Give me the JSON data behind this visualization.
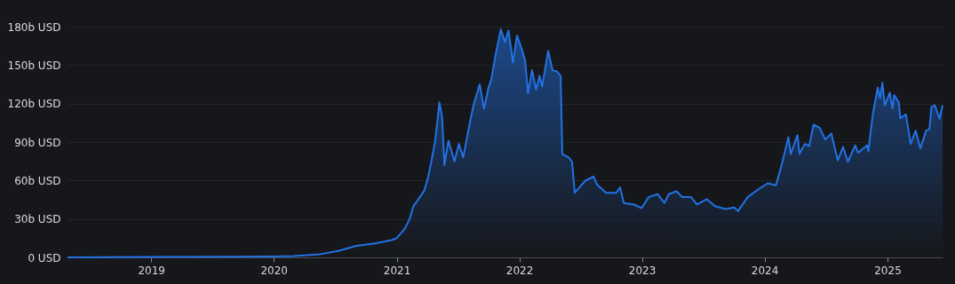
{
  "chart_data": {
    "type": "area",
    "x": [
      "2018-04-27",
      "2019-01-01",
      "2020-01-01",
      "2020-03-01",
      "2020-05-19",
      "2020-07-11",
      "2020-09-03",
      "2020-10-25",
      "2020-12-17",
      "2021-01-01",
      "2021-01-24",
      "2021-02-07",
      "2021-02-20",
      "2021-03-03",
      "2021-03-24",
      "2021-04-04",
      "2021-04-15",
      "2021-04-25",
      "2021-05-05",
      "2021-05-08",
      "2021-05-16",
      "2021-05-23",
      "2021-06-04",
      "2021-06-22",
      "2021-07-05",
      "2021-07-18",
      "2021-08-09",
      "2021-08-18",
      "2021-09-05",
      "2021-09-18",
      "2021-10-01",
      "2021-10-10",
      "2021-10-23",
      "2021-11-07",
      "2021-11-19",
      "2021-11-30",
      "2021-12-13",
      "2021-12-25",
      "2022-01-07",
      "2022-01-18",
      "2022-01-27",
      "2022-02-08",
      "2022-02-20",
      "2022-03-02",
      "2022-03-10",
      "2022-03-28",
      "2022-04-10",
      "2022-04-23",
      "2022-05-04",
      "2022-05-09",
      "2022-05-28",
      "2022-06-07",
      "2022-06-15",
      "2022-07-16",
      "2022-08-10",
      "2022-08-20",
      "2022-09-16",
      "2022-10-17",
      "2022-10-28",
      "2022-11-08",
      "2022-12-09",
      "2022-12-31",
      "2023-01-21",
      "2023-02-17",
      "2023-03-09",
      "2023-03-22",
      "2023-04-14",
      "2023-05-01",
      "2023-05-27",
      "2023-06-14",
      "2023-07-13",
      "2023-08-06",
      "2023-09-07",
      "2023-10-03",
      "2023-10-14",
      "2023-11-12",
      "2023-12-12",
      "2024-01-11",
      "2024-02-04",
      "2024-02-20",
      "2024-03-02",
      "2024-03-12",
      "2024-03-19",
      "2024-04-08",
      "2024-04-14",
      "2024-04-30",
      "2024-05-13",
      "2024-05-26",
      "2024-06-13",
      "2024-06-30",
      "2024-07-18",
      "2024-08-06",
      "2024-08-22",
      "2024-09-05",
      "2024-09-27",
      "2024-10-06",
      "2024-11-01",
      "2024-11-05",
      "2024-11-19",
      "2024-12-03",
      "2024-12-10",
      "2024-12-17",
      "2024-12-24",
      "2025-01-08",
      "2025-01-16",
      "2025-01-21",
      "2025-02-04",
      "2025-02-08",
      "2025-02-25",
      "2025-03-11",
      "2025-03-26",
      "2025-04-09",
      "2025-04-26",
      "2025-05-06",
      "2025-05-12",
      "2025-05-22",
      "2025-06-05",
      "2025-06-14"
    ],
    "series": [
      {
        "color": "#2172e5",
        "values": [
          0,
          0.3,
          0.7,
          1,
          2.5,
          5,
          9,
          10.7,
          13.5,
          15,
          22,
          29,
          40,
          44,
          52,
          62,
          76,
          90,
          113,
          121,
          110,
          72,
          91,
          75,
          88.5,
          78,
          108,
          119,
          135,
          116,
          132,
          139.5,
          159,
          178,
          168,
          177,
          152,
          173,
          163.5,
          154,
          128,
          146,
          131,
          141.6,
          133.5,
          161,
          146,
          145,
          141.6,
          80.5,
          78,
          74.6,
          50.4,
          59.7,
          63,
          57,
          50.4,
          50.4,
          54.6,
          42.4,
          41.2,
          38.4,
          47,
          49.3,
          42.4,
          49.3,
          51.6,
          47,
          47,
          41.2,
          45.4,
          40,
          37.7,
          38.9,
          36.1,
          47,
          52.8,
          57.8,
          56.2,
          71.2,
          82.8,
          93.8,
          80.5,
          95.4,
          80.9,
          88.5,
          86.9,
          103.5,
          101.2,
          92,
          96.6,
          75.8,
          86.2,
          74.6,
          87.4,
          81.6,
          87.4,
          82.8,
          112.7,
          132.4,
          124.3,
          136.3,
          118.6,
          128.5,
          116.2,
          126.6,
          120.8,
          108.6,
          111.6,
          88.5,
          98.9,
          85,
          98.9,
          100,
          117.4,
          118.6,
          108.2,
          118.6
        ]
      }
    ],
    "xlim": [
      "2018-04-27",
      "2025-06-14"
    ],
    "xticks": [
      "2019",
      "2020",
      "2021",
      "2022",
      "2023",
      "2024",
      "2025"
    ],
    "ylim": [
      0,
      180
    ],
    "yticks": [
      {
        "value": 0,
        "label": "0 USD"
      },
      {
        "value": 30,
        "label": "30b USD"
      },
      {
        "value": 60,
        "label": "60b USD"
      },
      {
        "value": 90,
        "label": "90b USD"
      },
      {
        "value": 120,
        "label": "120b USD"
      },
      {
        "value": 150,
        "label": "150b USD"
      },
      {
        "value": 180,
        "label": "180b USD"
      }
    ],
    "grid": "y"
  }
}
